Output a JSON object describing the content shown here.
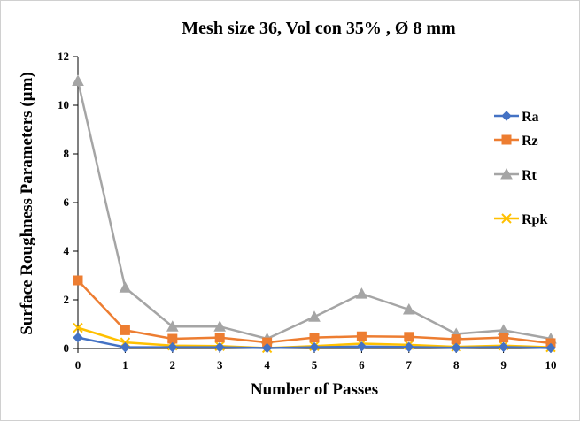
{
  "chart_data": {
    "type": "line",
    "title": "Mesh size 36, Vol con 35% , Ø 8 mm",
    "xlabel": "Number of Passes",
    "ylabel": "Surface Roughness Parameters (µm)",
    "x": [
      0,
      1,
      2,
      3,
      4,
      5,
      6,
      7,
      8,
      9,
      10
    ],
    "xlim": [
      0,
      10
    ],
    "ylim": [
      0,
      12
    ],
    "yticks": [
      "0",
      "2",
      "4",
      "6",
      "8",
      "10",
      "12"
    ],
    "xticks": [
      "0",
      "1",
      "2",
      "3",
      "4",
      "5",
      "6",
      "7",
      "8",
      "9",
      "10"
    ],
    "grid": false,
    "legend_position": "right",
    "series": [
      {
        "name": "Ra",
        "color": "#4472c4",
        "marker": "diamond",
        "values": [
          0.45,
          0.05,
          0.05,
          0.05,
          0.02,
          0.05,
          0.08,
          0.06,
          0.03,
          0.06,
          0.02
        ]
      },
      {
        "name": "Rz",
        "color": "#ed7d31",
        "marker": "square",
        "values": [
          2.8,
          0.75,
          0.4,
          0.45,
          0.25,
          0.45,
          0.5,
          0.48,
          0.38,
          0.45,
          0.22
        ]
      },
      {
        "name": "Rt",
        "color": "#a5a5a5",
        "marker": "triangle",
        "values": [
          11.0,
          2.5,
          0.9,
          0.9,
          0.4,
          1.3,
          2.25,
          1.6,
          0.6,
          0.75,
          0.4
        ]
      },
      {
        "name": "Rpk",
        "color": "#ffc000",
        "marker": "x",
        "values": [
          0.85,
          0.25,
          0.12,
          0.1,
          0.02,
          0.1,
          0.2,
          0.15,
          0.07,
          0.12,
          0.05
        ]
      }
    ]
  }
}
